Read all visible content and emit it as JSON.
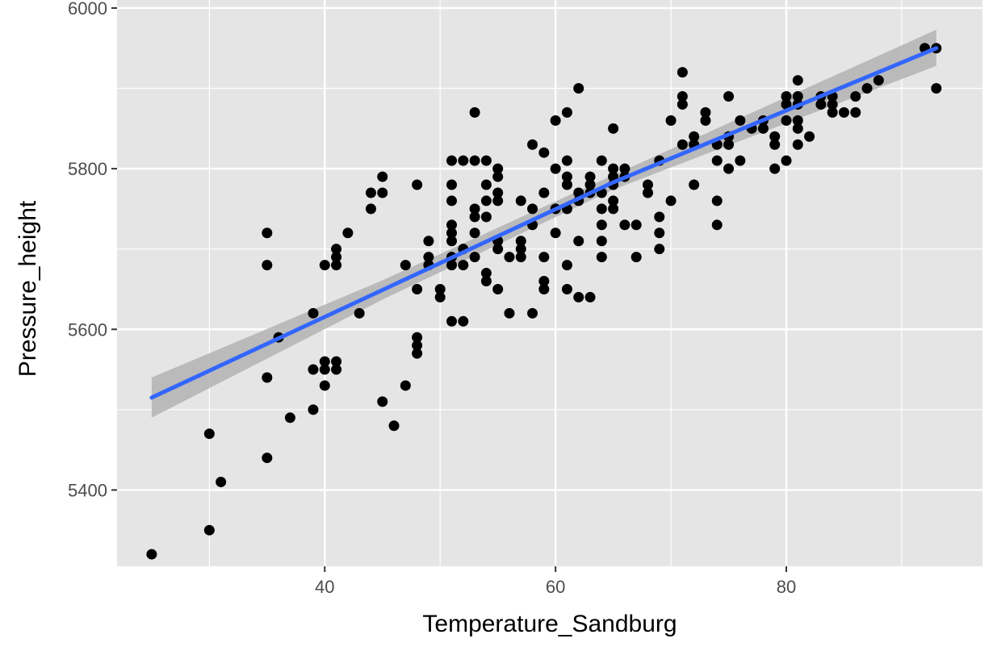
{
  "chart_data": {
    "type": "scatter",
    "xlabel": "Temperature_Sandburg",
    "ylabel": "Pressure_height",
    "xlim": [
      22,
      97
    ],
    "ylim": [
      5305,
      6010
    ],
    "x_ticks": [
      40,
      60,
      80
    ],
    "y_ticks": [
      5400,
      5600,
      5800,
      6000
    ],
    "x_minor": [
      30,
      50,
      70,
      90
    ],
    "y_minor": [
      5300,
      5500,
      5700,
      5900
    ],
    "grid": true,
    "colors": {
      "panel": "#e5e5e5",
      "grid": "#ffffff",
      "points": "#000000",
      "fit_line": "#3366ff",
      "ribbon": "#b3b3b3"
    },
    "points": [
      [
        25,
        5320
      ],
      [
        30,
        5350
      ],
      [
        30,
        5470
      ],
      [
        31,
        5410
      ],
      [
        35,
        5720
      ],
      [
        35,
        5680
      ],
      [
        35,
        5540
      ],
      [
        35,
        5440
      ],
      [
        36,
        5590
      ],
      [
        37,
        5490
      ],
      [
        39,
        5620
      ],
      [
        39,
        5550
      ],
      [
        39,
        5500
      ],
      [
        40,
        5680
      ],
      [
        40,
        5560
      ],
      [
        40,
        5550
      ],
      [
        40,
        5530
      ],
      [
        41,
        5700
      ],
      [
        41,
        5690
      ],
      [
        41,
        5680
      ],
      [
        41,
        5560
      ],
      [
        41,
        5550
      ],
      [
        42,
        5720
      ],
      [
        43,
        5620
      ],
      [
        44,
        5770
      ],
      [
        44,
        5750
      ],
      [
        45,
        5790
      ],
      [
        45,
        5770
      ],
      [
        45,
        5510
      ],
      [
        46,
        5480
      ],
      [
        47,
        5680
      ],
      [
        47,
        5530
      ],
      [
        48,
        5780
      ],
      [
        48,
        5650
      ],
      [
        48,
        5590
      ],
      [
        48,
        5580
      ],
      [
        48,
        5570
      ],
      [
        49,
        5710
      ],
      [
        49,
        5690
      ],
      [
        49,
        5680
      ],
      [
        50,
        5650
      ],
      [
        50,
        5640
      ],
      [
        51,
        5810
      ],
      [
        51,
        5780
      ],
      [
        51,
        5760
      ],
      [
        51,
        5730
      ],
      [
        51,
        5720
      ],
      [
        51,
        5710
      ],
      [
        51,
        5690
      ],
      [
        51,
        5680
      ],
      [
        51,
        5610
      ],
      [
        52,
        5810
      ],
      [
        52,
        5700
      ],
      [
        52,
        5680
      ],
      [
        52,
        5610
      ],
      [
        53,
        5870
      ],
      [
        53,
        5810
      ],
      [
        53,
        5750
      ],
      [
        53,
        5740
      ],
      [
        53,
        5720
      ],
      [
        53,
        5690
      ],
      [
        54,
        5810
      ],
      [
        54,
        5780
      ],
      [
        54,
        5760
      ],
      [
        54,
        5740
      ],
      [
        54,
        5670
      ],
      [
        54,
        5660
      ],
      [
        55,
        5800
      ],
      [
        55,
        5790
      ],
      [
        55,
        5770
      ],
      [
        55,
        5760
      ],
      [
        55,
        5710
      ],
      [
        55,
        5700
      ],
      [
        55,
        5650
      ],
      [
        56,
        5690
      ],
      [
        56,
        5620
      ],
      [
        57,
        5760
      ],
      [
        57,
        5710
      ],
      [
        57,
        5700
      ],
      [
        57,
        5690
      ],
      [
        58,
        5830
      ],
      [
        58,
        5750
      ],
      [
        58,
        5730
      ],
      [
        58,
        5620
      ],
      [
        59,
        5820
      ],
      [
        59,
        5770
      ],
      [
        59,
        5690
      ],
      [
        59,
        5660
      ],
      [
        59,
        5650
      ],
      [
        60,
        5860
      ],
      [
        60,
        5800
      ],
      [
        60,
        5750
      ],
      [
        60,
        5720
      ],
      [
        61,
        5870
      ],
      [
        61,
        5810
      ],
      [
        61,
        5790
      ],
      [
        61,
        5780
      ],
      [
        61,
        5750
      ],
      [
        61,
        5680
      ],
      [
        61,
        5650
      ],
      [
        62,
        5900
      ],
      [
        62,
        5770
      ],
      [
        62,
        5760
      ],
      [
        62,
        5710
      ],
      [
        62,
        5640
      ],
      [
        63,
        5790
      ],
      [
        63,
        5780
      ],
      [
        63,
        5770
      ],
      [
        63,
        5640
      ],
      [
        64,
        5810
      ],
      [
        64,
        5770
      ],
      [
        64,
        5750
      ],
      [
        64,
        5730
      ],
      [
        64,
        5710
      ],
      [
        64,
        5690
      ],
      [
        65,
        5850
      ],
      [
        65,
        5800
      ],
      [
        65,
        5790
      ],
      [
        65,
        5780
      ],
      [
        65,
        5760
      ],
      [
        65,
        5750
      ],
      [
        66,
        5800
      ],
      [
        66,
        5790
      ],
      [
        66,
        5730
      ],
      [
        67,
        5730
      ],
      [
        67,
        5690
      ],
      [
        68,
        5780
      ],
      [
        68,
        5770
      ],
      [
        69,
        5810
      ],
      [
        69,
        5740
      ],
      [
        69,
        5720
      ],
      [
        69,
        5700
      ],
      [
        70,
        5860
      ],
      [
        70,
        5760
      ],
      [
        71,
        5920
      ],
      [
        71,
        5890
      ],
      [
        71,
        5880
      ],
      [
        71,
        5830
      ],
      [
        72,
        5840
      ],
      [
        72,
        5830
      ],
      [
        72,
        5780
      ],
      [
        73,
        5870
      ],
      [
        73,
        5860
      ],
      [
        74,
        5830
      ],
      [
        74,
        5810
      ],
      [
        74,
        5760
      ],
      [
        74,
        5730
      ],
      [
        75,
        5890
      ],
      [
        75,
        5840
      ],
      [
        75,
        5830
      ],
      [
        75,
        5800
      ],
      [
        76,
        5860
      ],
      [
        76,
        5810
      ],
      [
        77,
        5850
      ],
      [
        78,
        5860
      ],
      [
        78,
        5850
      ],
      [
        79,
        5840
      ],
      [
        79,
        5830
      ],
      [
        79,
        5800
      ],
      [
        80,
        5890
      ],
      [
        80,
        5880
      ],
      [
        80,
        5860
      ],
      [
        80,
        5810
      ],
      [
        81,
        5910
      ],
      [
        81,
        5890
      ],
      [
        81,
        5880
      ],
      [
        81,
        5860
      ],
      [
        81,
        5850
      ],
      [
        81,
        5830
      ],
      [
        82,
        5840
      ],
      [
        83,
        5890
      ],
      [
        83,
        5880
      ],
      [
        84,
        5890
      ],
      [
        84,
        5880
      ],
      [
        84,
        5870
      ],
      [
        85,
        5870
      ],
      [
        86,
        5890
      ],
      [
        86,
        5870
      ],
      [
        87,
        5900
      ],
      [
        88,
        5910
      ],
      [
        92,
        5950
      ],
      [
        93,
        5950
      ],
      [
        93,
        5900
      ]
    ],
    "fit": {
      "x": [
        25,
        45,
        65,
        93
      ],
      "y": [
        5515,
        5649,
        5783,
        5950
      ],
      "se_band": [
        [
          25,
          5490,
          5540
        ],
        [
          45,
          5637,
          5661
        ],
        [
          65,
          5774,
          5792
        ],
        [
          93,
          5928,
          5973
        ]
      ]
    }
  }
}
